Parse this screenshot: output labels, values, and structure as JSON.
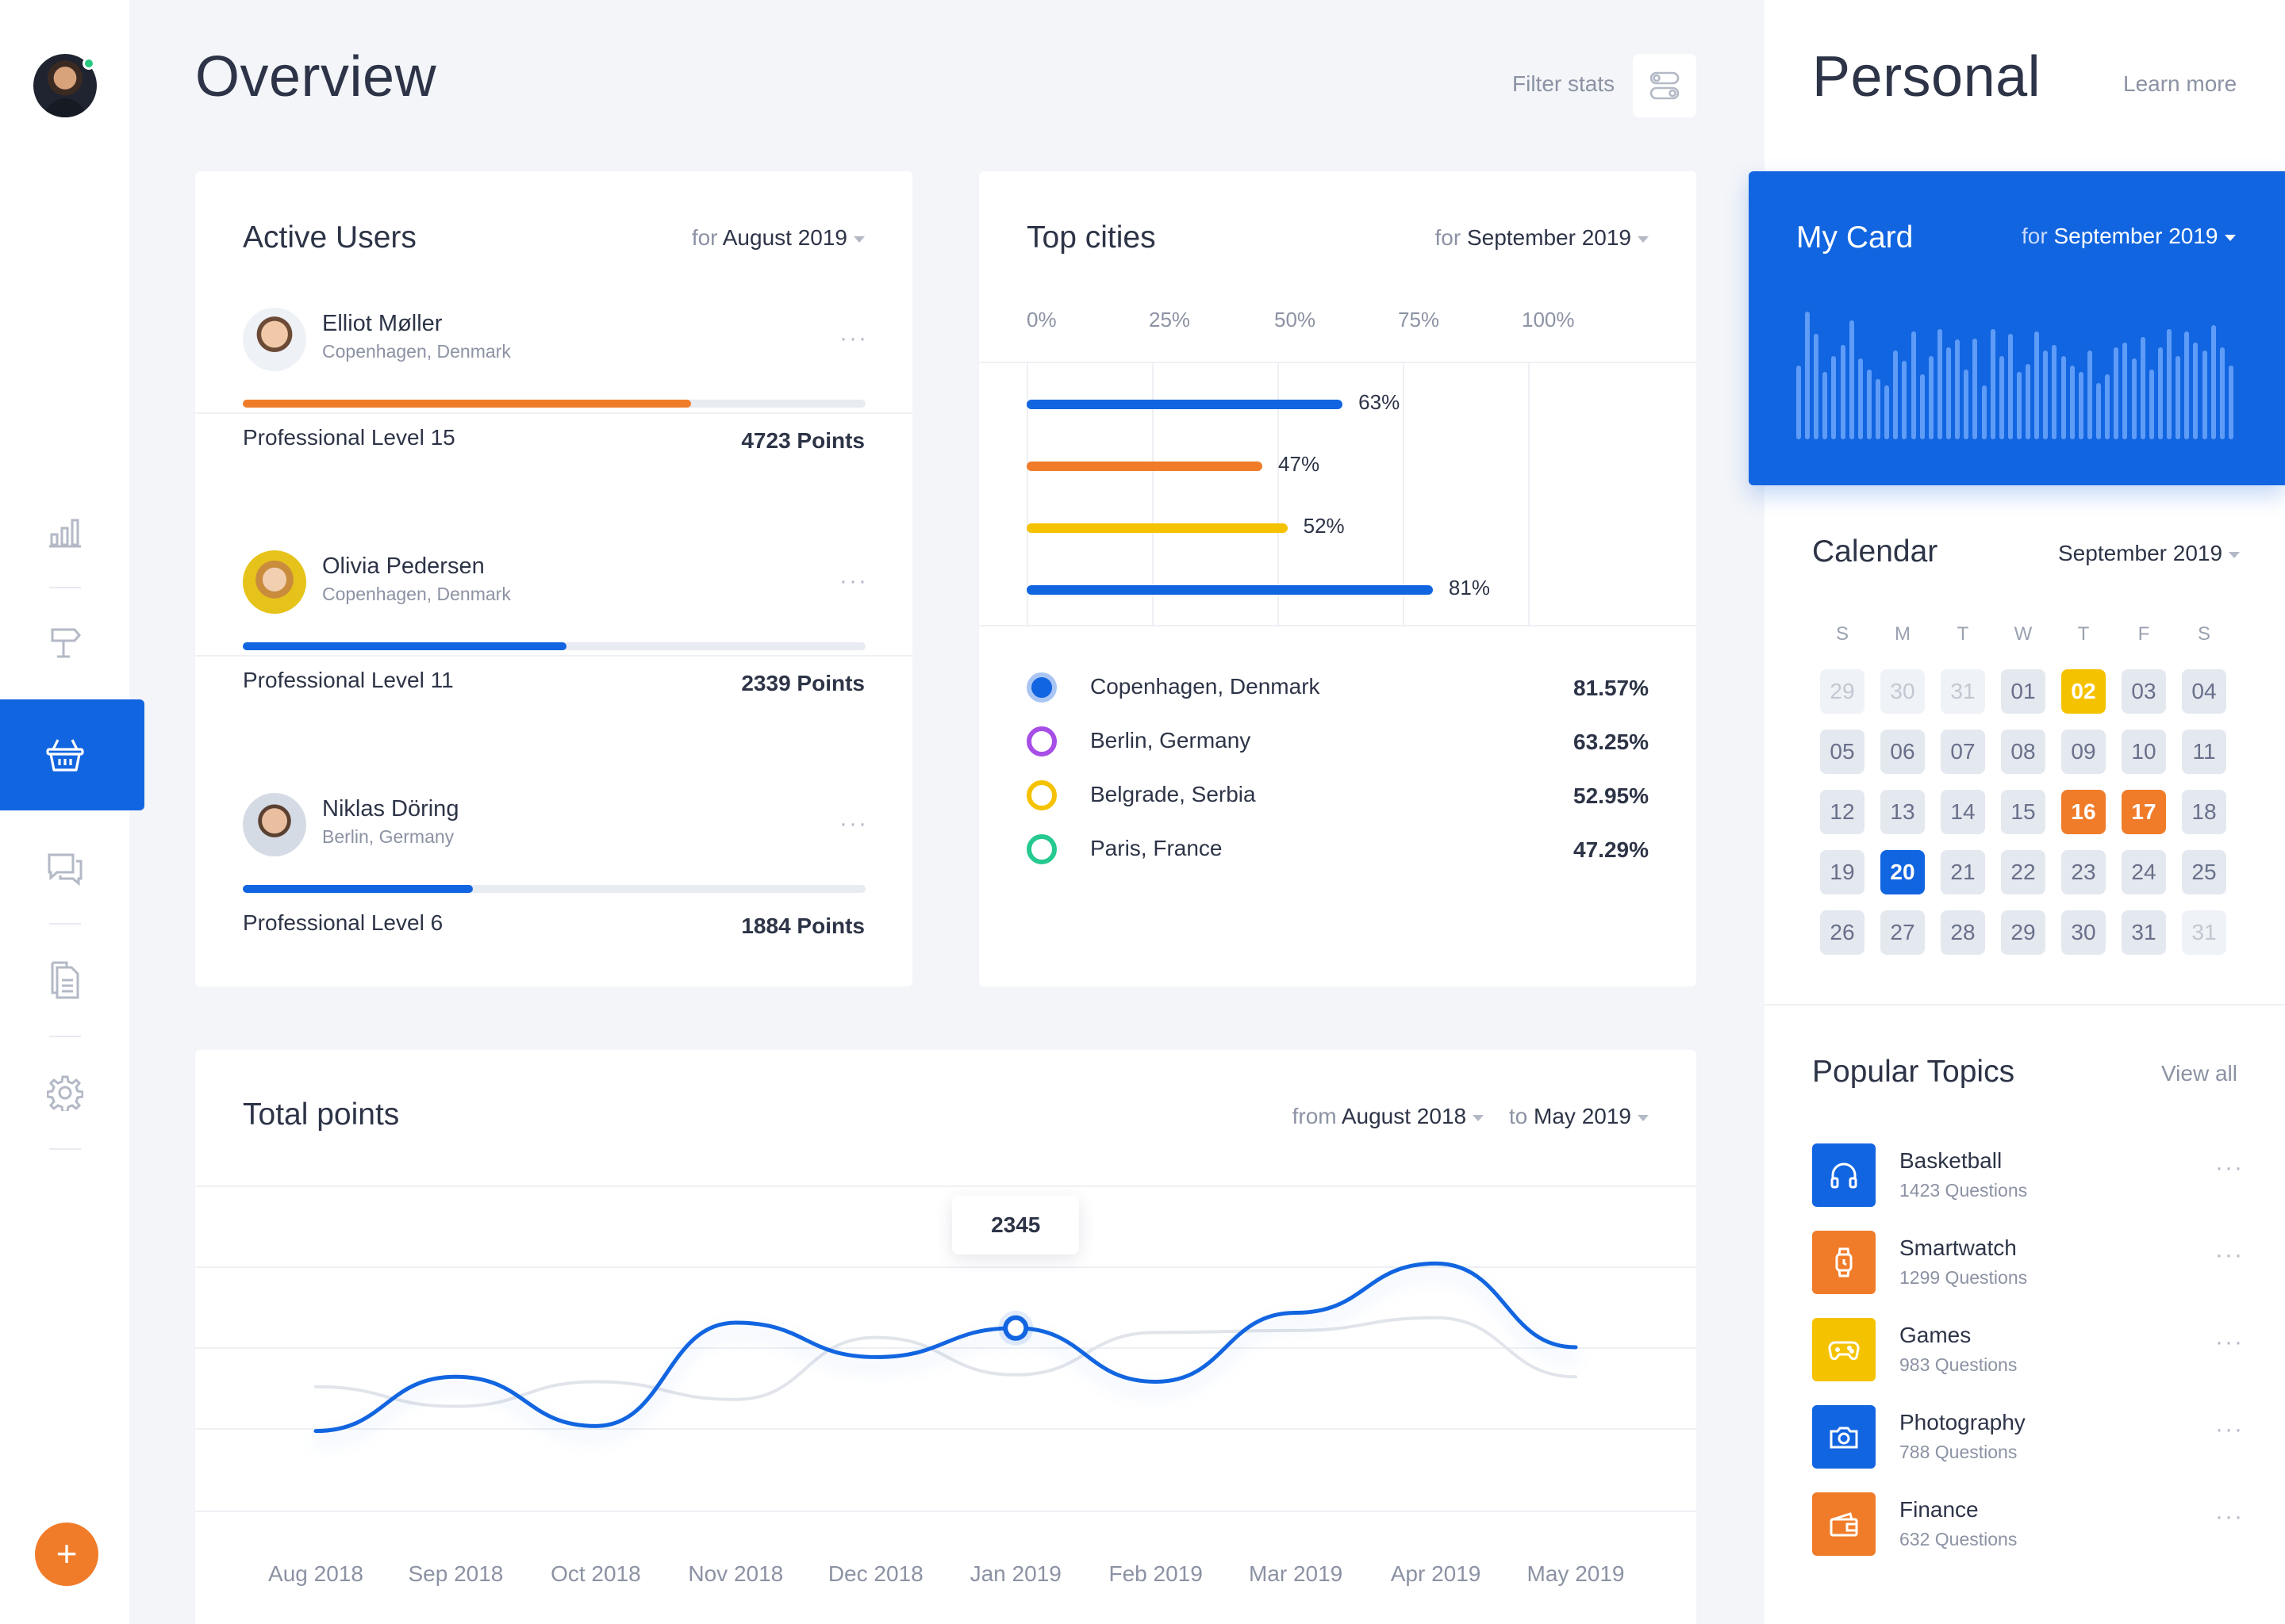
{
  "header": {
    "title": "Overview",
    "filter_label": "Filter stats"
  },
  "active_users": {
    "title": "Active Users",
    "for_label": "for",
    "period": "August 2019",
    "users": [
      {
        "name": "Elliot Møller",
        "location": "Copenhagen, Denmark",
        "level": "Professional Level 15",
        "points": "4723 Points",
        "progress": 0.72,
        "color": "#f07c2a"
      },
      {
        "name": "Olivia Pedersen",
        "location": "Copenhagen, Denmark",
        "level": "Professional Level 11",
        "points": "2339 Points",
        "progress": 0.52,
        "color": "#1265e0"
      },
      {
        "name": "Niklas Döring",
        "location": "Berlin, Germany",
        "level": "Professional Level 6",
        "points": "1884 Points",
        "progress": 0.37,
        "color": "#1265e0"
      }
    ]
  },
  "top_cities": {
    "title": "Top cities",
    "for_label": "for",
    "period": "September 2019",
    "axis": [
      "0%",
      "25%",
      "50%",
      "75%",
      "100%"
    ],
    "bars": [
      {
        "value": 63,
        "label": "63%",
        "color": "#1265e0"
      },
      {
        "value": 47,
        "label": "47%",
        "color": "#f07c2a"
      },
      {
        "value": 52,
        "label": "52%",
        "color": "#f5c200"
      },
      {
        "value": 81,
        "label": "81%",
        "color": "#1265e0"
      }
    ],
    "legend": [
      {
        "city": "Copenhagen, Denmark",
        "pct": "81.57%",
        "color": "#1265e0",
        "style": "filled"
      },
      {
        "city": "Berlin, Germany",
        "pct": "63.25%",
        "color": "#a64ee6",
        "style": "ring"
      },
      {
        "city": "Belgrade, Serbia",
        "pct": "52.95%",
        "color": "#f5c200",
        "style": "ring"
      },
      {
        "city": "Paris, France",
        "pct": "47.29%",
        "color": "#26c98f",
        "style": "ring"
      }
    ]
  },
  "total_points": {
    "title": "Total points",
    "from_label": "from",
    "from": "August 2018",
    "to_label": "to",
    "to": "May 2019",
    "tooltip": "2345"
  },
  "chart_data": {
    "type": "line",
    "title": "Total points",
    "categories": [
      "Aug 2018",
      "Sep 2018",
      "Oct 2018",
      "Nov 2018",
      "Dec 2018",
      "Jan 2019",
      "Feb 2019",
      "Mar 2019",
      "Apr 2019",
      "May 2019"
    ],
    "series": [
      {
        "name": "current",
        "values": [
          1300,
          1850,
          1350,
          2400,
          2050,
          2345,
          1800,
          2500,
          3000,
          2150
        ],
        "color": "#1265e0"
      },
      {
        "name": "previous",
        "values": [
          1750,
          1550,
          1800,
          1620,
          2250,
          1870,
          2300,
          2320,
          2450,
          1850
        ],
        "color": "#e1e4ea"
      }
    ],
    "highlight": {
      "category": "Jan 2019",
      "value": 2345
    },
    "ylim": [
      500,
      3800
    ]
  },
  "personal": {
    "title": "Personal",
    "learn_more": "Learn more"
  },
  "my_card": {
    "title": "My Card",
    "for_label": "for",
    "period": "September 2019",
    "bars": [
      0.55,
      0.95,
      0.78,
      0.5,
      0.62,
      0.7,
      0.88,
      0.6,
      0.52,
      0.45,
      0.4,
      0.66,
      0.58,
      0.8,
      0.48,
      0.62,
      0.82,
      0.68,
      0.74,
      0.52,
      0.75,
      0.4,
      0.82,
      0.62,
      0.78,
      0.5,
      0.56,
      0.8,
      0.66,
      0.7,
      0.62,
      0.55,
      0.5,
      0.66,
      0.42,
      0.48,
      0.68,
      0.72,
      0.6,
      0.76,
      0.52,
      0.68,
      0.82,
      0.62,
      0.8,
      0.72,
      0.66,
      0.85,
      0.68,
      0.55
    ]
  },
  "calendar": {
    "title": "Calendar",
    "period": "September 2019",
    "weekdays": [
      "S",
      "M",
      "T",
      "W",
      "T",
      "F",
      "S"
    ],
    "days": [
      {
        "d": "29",
        "t": "out"
      },
      {
        "d": "30",
        "t": "out"
      },
      {
        "d": "31",
        "t": "out"
      },
      {
        "d": "01",
        "t": ""
      },
      {
        "d": "02",
        "t": "y"
      },
      {
        "d": "03",
        "t": ""
      },
      {
        "d": "04",
        "t": ""
      },
      {
        "d": "05",
        "t": ""
      },
      {
        "d": "06",
        "t": ""
      },
      {
        "d": "07",
        "t": ""
      },
      {
        "d": "08",
        "t": ""
      },
      {
        "d": "09",
        "t": ""
      },
      {
        "d": "10",
        "t": ""
      },
      {
        "d": "11",
        "t": ""
      },
      {
        "d": "12",
        "t": ""
      },
      {
        "d": "13",
        "t": ""
      },
      {
        "d": "14",
        "t": ""
      },
      {
        "d": "15",
        "t": ""
      },
      {
        "d": "16",
        "t": "o"
      },
      {
        "d": "17",
        "t": "o"
      },
      {
        "d": "18",
        "t": ""
      },
      {
        "d": "19",
        "t": ""
      },
      {
        "d": "20",
        "t": "b"
      },
      {
        "d": "21",
        "t": ""
      },
      {
        "d": "22",
        "t": ""
      },
      {
        "d": "23",
        "t": ""
      },
      {
        "d": "24",
        "t": ""
      },
      {
        "d": "25",
        "t": ""
      },
      {
        "d": "26",
        "t": ""
      },
      {
        "d": "27",
        "t": ""
      },
      {
        "d": "28",
        "t": ""
      },
      {
        "d": "29",
        "t": ""
      },
      {
        "d": "30",
        "t": ""
      },
      {
        "d": "31",
        "t": ""
      },
      {
        "d": "31",
        "t": "out"
      }
    ]
  },
  "popular_topics": {
    "title": "Popular Topics",
    "view_all": "View all",
    "items": [
      {
        "name": "Basketball",
        "questions": "1423 Questions",
        "color": "#1265e0",
        "icon": "headphones-icon"
      },
      {
        "name": "Smartwatch",
        "questions": "1299 Questions",
        "color": "#f07c2a",
        "icon": "watch-icon"
      },
      {
        "name": "Games",
        "questions": "983 Questions",
        "color": "#f5c200",
        "icon": "gamepad-icon"
      },
      {
        "name": "Photography",
        "questions": "788 Questions",
        "color": "#1265e0",
        "icon": "camera-icon"
      },
      {
        "name": "Finance",
        "questions": "632 Questions",
        "color": "#f07c2a",
        "icon": "wallet-icon"
      }
    ]
  }
}
